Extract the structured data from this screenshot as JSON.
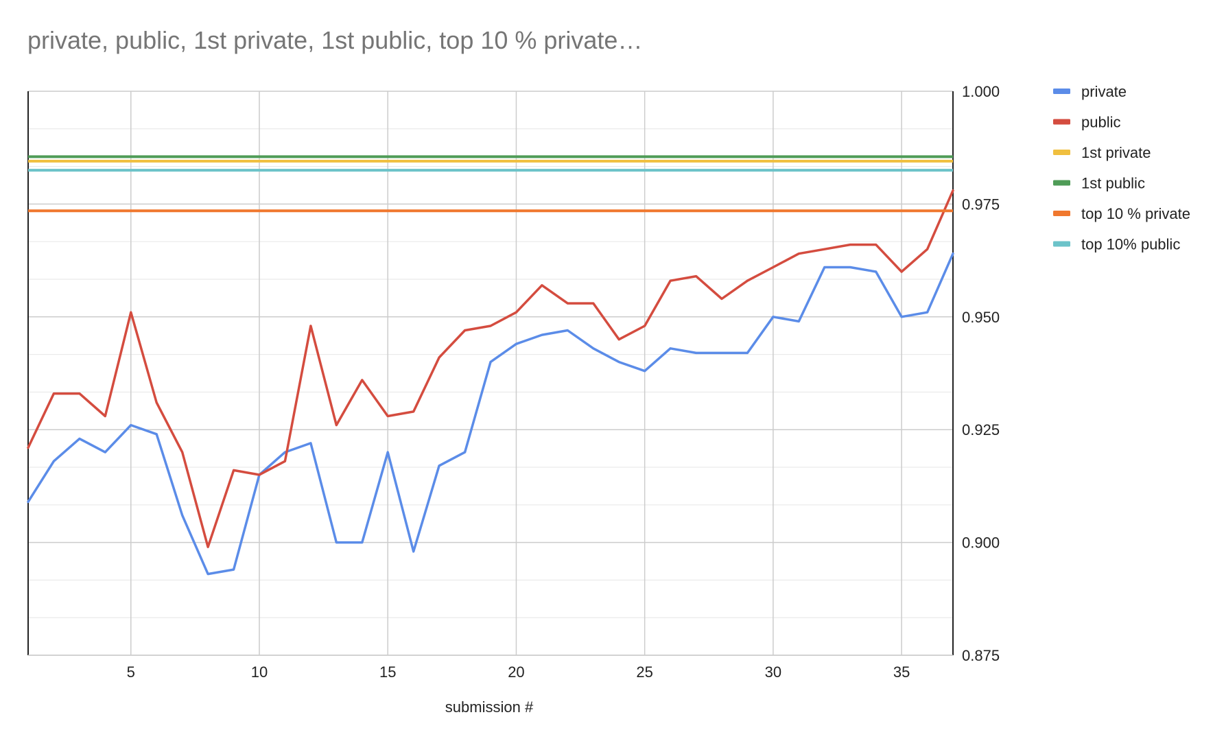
{
  "chart_data": {
    "type": "line",
    "title": "private, public, 1st private, 1st public, top 10 % private…",
    "xlabel": "submission #",
    "ylabel": "",
    "xlim": [
      1,
      37
    ],
    "ylim": [
      0.875,
      1.0
    ],
    "x_ticks": [
      5,
      10,
      15,
      20,
      25,
      30,
      35
    ],
    "y_ticks": [
      "1.000",
      "0.975",
      "0.950",
      "0.925",
      "0.900",
      "0.875"
    ],
    "y_axis_position": "right",
    "grid": true,
    "legend_position": "right",
    "x": [
      1,
      2,
      3,
      4,
      5,
      6,
      7,
      8,
      9,
      10,
      11,
      12,
      13,
      14,
      15,
      16,
      17,
      18,
      19,
      20,
      21,
      22,
      23,
      24,
      25,
      26,
      27,
      28,
      29,
      30,
      31,
      32,
      33,
      34,
      35,
      36,
      37
    ],
    "series": [
      {
        "name": "private",
        "color": "#5b8ce8",
        "values": [
          0.909,
          0.918,
          0.923,
          0.92,
          0.926,
          0.924,
          0.906,
          0.893,
          0.894,
          0.915,
          0.92,
          0.922,
          0.9,
          0.9,
          0.92,
          0.898,
          0.917,
          0.92,
          0.94,
          0.944,
          0.946,
          0.947,
          0.943,
          0.94,
          0.938,
          0.943,
          0.942,
          0.942,
          0.942,
          0.95,
          0.949,
          0.961,
          0.961,
          0.96,
          0.95,
          0.951,
          0.964
        ]
      },
      {
        "name": "public",
        "color": "#d44c3f",
        "values": [
          0.921,
          0.933,
          0.933,
          0.928,
          0.951,
          0.931,
          0.92,
          0.899,
          0.916,
          0.915,
          0.918,
          0.948,
          0.926,
          0.936,
          0.928,
          0.929,
          0.941,
          0.947,
          0.948,
          0.951,
          0.957,
          0.953,
          0.953,
          0.945,
          0.948,
          0.958,
          0.959,
          0.954,
          0.958,
          0.961,
          0.964,
          0.965,
          0.966,
          0.966,
          0.96,
          0.965,
          0.978
        ]
      },
      {
        "name": "1st private",
        "color": "#f0bf3f",
        "constant": 0.9845
      },
      {
        "name": "1st public",
        "color": "#4f9c57",
        "constant": 0.9855
      },
      {
        "name": "top 10 % private",
        "color": "#f0782e",
        "constant": 0.9735
      },
      {
        "name": "top 10% public",
        "color": "#6cc3c9",
        "constant": 0.9825
      }
    ]
  }
}
